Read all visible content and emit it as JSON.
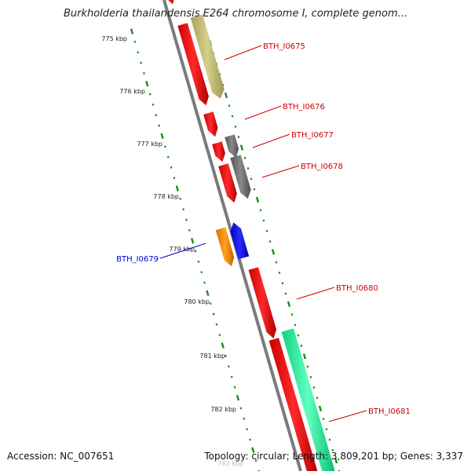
{
  "header": {
    "title": "Burkholderia thailandensis E264 chromosome I, complete genom..."
  },
  "footer": {
    "accession": "Accession: NC_007651",
    "topology": "Topology: circular; Length: 3,809,201 bp; Genes: 3,337"
  },
  "scale_ticks": [
    "775 kbp",
    "776 kbp",
    "777 kbp",
    "778 kbp",
    "779 kbp",
    "780 kbp",
    "781 kbp",
    "782 kbp",
    "783 kbp"
  ],
  "genes": [
    {
      "label": "BTH_I0675",
      "color": "#c8c07a"
    },
    {
      "label": "BTH_I0676",
      "color": "#ff0000"
    },
    {
      "label": "BTH_I0677",
      "color": "#707070"
    },
    {
      "label": "BTH_I0678",
      "color": "#707070"
    },
    {
      "label": "BTH_I0679",
      "color": "#0000ff"
    },
    {
      "label": "BTH_I0680",
      "color": "#ff0000"
    },
    {
      "label": "BTH_I0681",
      "color": "#1ef5a0"
    }
  ],
  "colors": {
    "cds_red": "#ff0000",
    "orange": "#ff8c00",
    "backbone": "#7a7a7a",
    "dots": "#1a8a1a",
    "label_red": "#cc0000",
    "label_blue": "#0000cc"
  }
}
